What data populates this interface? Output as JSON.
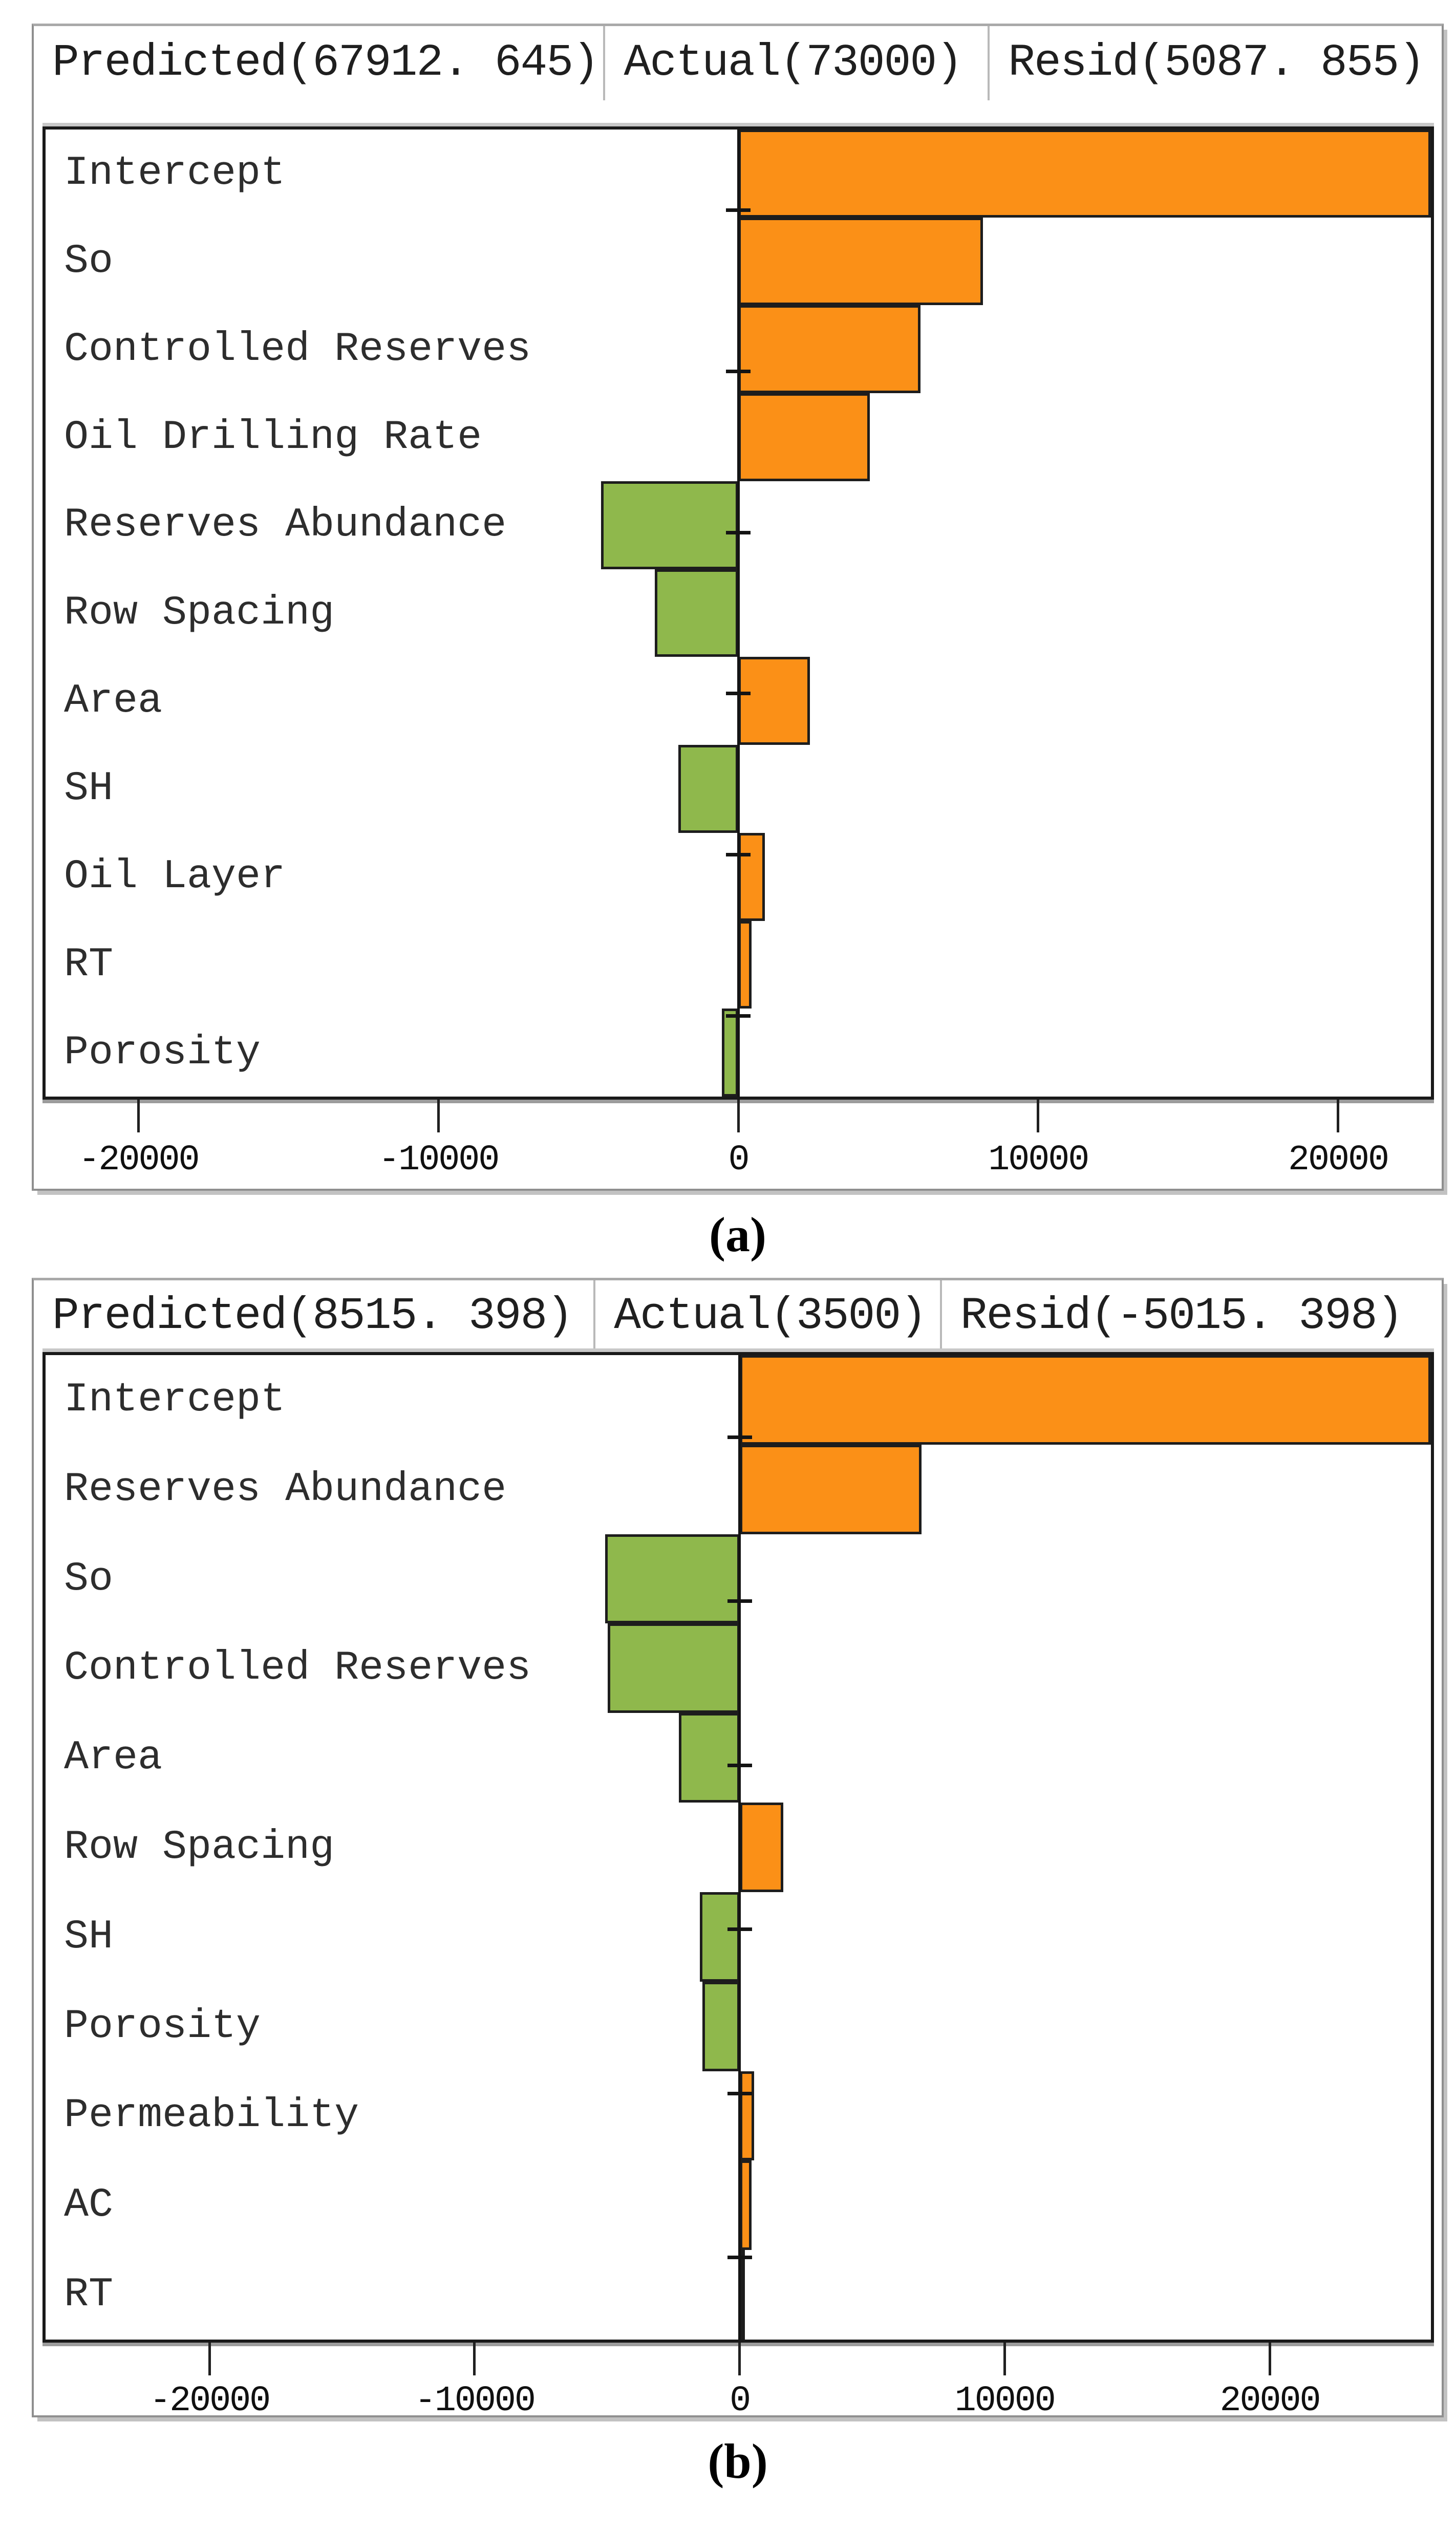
{
  "page": {
    "background": "#ffffff"
  },
  "captions": {
    "a": "(a)",
    "b": "(b)"
  },
  "colors": {
    "positive_bar": "#FB9017",
    "negative_bar": "#8FB84C",
    "bar_border": "#1d1d1d",
    "axis": "#191919",
    "window_border": "#8f8f8f",
    "title_divider": "#b9b9b9",
    "shadow": "#c2c2c2",
    "text": "#1f1f1f"
  },
  "chart_data": [
    {
      "id": "a",
      "type": "bar",
      "orientation": "horizontal",
      "caption": "(a)",
      "title": "Predicted(67912. 645) | Actual(73000) | Resid(5087. 855)",
      "header": [
        "Predicted(67912. 645)",
        "Actual(73000)",
        "Resid(5087. 855)"
      ],
      "header_values": {
        "predicted": 67912.645,
        "actual": 73000,
        "resid": 5087.855
      },
      "categories": [
        "Intercept",
        "So",
        "Controlled Reserves",
        "Oil Drilling Rate",
        "Reserves Abundance",
        "Row Spacing",
        "Area",
        "SH",
        "Oil Layer",
        "RT",
        "Porosity"
      ],
      "values": [
        23200,
        8200,
        6100,
        4400,
        -4600,
        -2800,
        2400,
        -2000,
        900,
        450,
        -550
      ],
      "intercept_clipped_at_right_edge": true,
      "xlim": [
        -23200,
        23200
      ],
      "x_ticks": [
        -20000,
        -10000,
        0,
        10000,
        20000
      ],
      "x_tick_labels": [
        "-20000",
        "-10000",
        "0",
        "10000",
        "20000"
      ],
      "y_tick_count": 6,
      "grid": false,
      "xlabel": "",
      "ylabel": "",
      "positive_color": "#FB9017",
      "negative_color": "#8FB84C"
    },
    {
      "id": "b",
      "type": "bar",
      "orientation": "horizontal",
      "caption": "(b)",
      "title": "Predicted(8515. 398) | Actual(3500) | Resid(-5015. 398)",
      "header": [
        "Predicted(8515. 398)",
        "Actual(3500)",
        "Resid(-5015. 398)"
      ],
      "header_values": {
        "predicted": 8515.398,
        "actual": 3500,
        "resid": -5015.398
      },
      "categories": [
        "Intercept",
        "Reserves Abundance",
        "So",
        "Controlled Reserves",
        "Area",
        "Row Spacing",
        "SH",
        "Porosity",
        "Permeability",
        "AC",
        "RT"
      ],
      "values": [
        26200,
        6900,
        -5100,
        -5000,
        -2300,
        1650,
        -1500,
        -1400,
        550,
        450,
        200
      ],
      "intercept_clipped_at_right_edge": true,
      "xlim": [
        -26300,
        26200
      ],
      "x_ticks": [
        -20000,
        -10000,
        0,
        10000,
        20000
      ],
      "x_tick_labels": [
        "-20000",
        "-10000",
        "0",
        "10000",
        "20000"
      ],
      "y_tick_count": 6,
      "grid": false,
      "xlabel": "",
      "ylabel": "",
      "positive_color": "#FB9017",
      "negative_color": "#8FB84C"
    }
  ]
}
